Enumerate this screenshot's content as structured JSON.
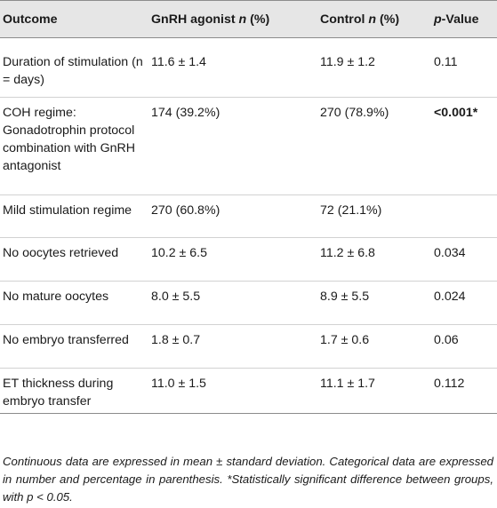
{
  "table": {
    "headers": {
      "outcome": "Outcome",
      "agonist_pre": "GnRH agonist ",
      "agonist_n": "n",
      "agonist_post": " (%)",
      "control_pre": "Control ",
      "control_n": "n",
      "control_post": " (%)",
      "p_italic": "p",
      "p_post": "-Value"
    },
    "rows": [
      {
        "outcome": "Duration of stimulation (n = days)",
        "agonist": "11.6 ± 1.4",
        "control": "11.9 ± 1.2",
        "p": "0.11"
      },
      {
        "outcome": "COH regime: Gonadotrophin protocol combination with GnRH antagonist",
        "agonist": "174 (39.2%)",
        "control": "270 (78.9%)",
        "p": "<0.001*"
      },
      {
        "outcome": "Mild stimulation regime",
        "agonist": "270 (60.8%)",
        "control": "72 (21.1%)",
        "p": ""
      },
      {
        "outcome": "No oocytes retrieved",
        "agonist": "10.2 ± 6.5",
        "control": "11.2 ± 6.8",
        "p": "0.034"
      },
      {
        "outcome": "No mature oocytes",
        "agonist": "8.0 ± 5.5",
        "control": "8.9 ± 5.5",
        "p": "0.024"
      },
      {
        "outcome": "No embryo transferred",
        "agonist": "1.8 ± 0.7",
        "control": "1.7 ± 0.6",
        "p": "0.06"
      },
      {
        "outcome": "ET thickness during embryo transfer",
        "agonist": "11.0 ± 1.5",
        "control": "11.1 ± 1.7",
        "p": "0.112"
      }
    ]
  },
  "footnote": "Continuous data are expressed in mean ± standard deviation. Categorical data are expressed in number and percentage in parenthesis. *Statistically significant difference between groups, with p < 0.05."
}
